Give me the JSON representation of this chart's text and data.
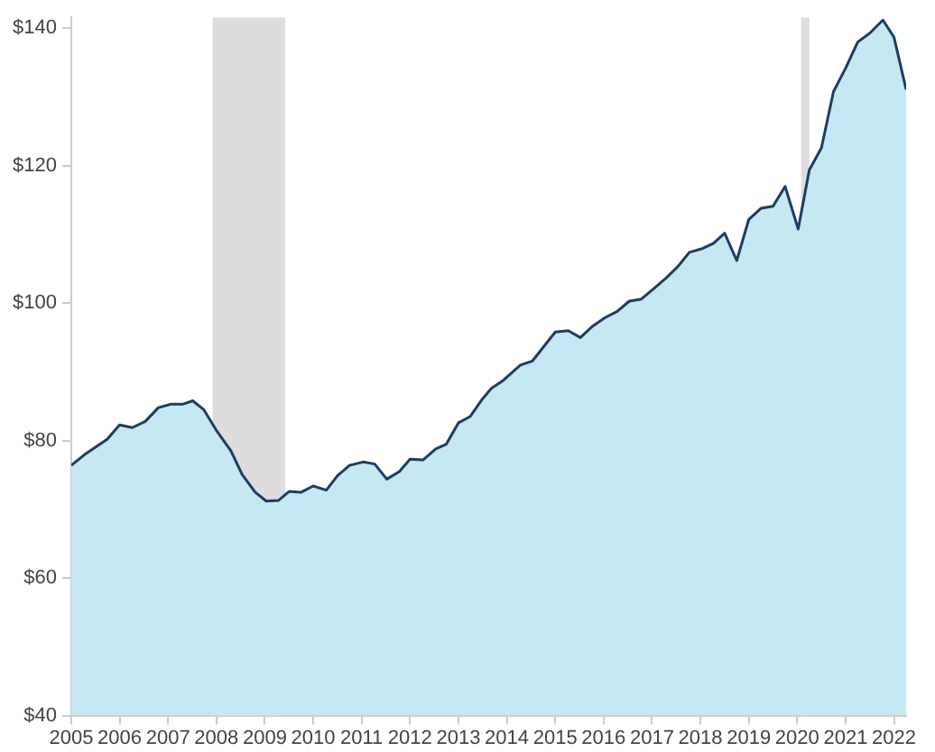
{
  "chart_data": {
    "type": "area",
    "x": [
      2005.0,
      2005.3,
      2005.74,
      2006.0,
      2006.26,
      2006.53,
      2006.8,
      2007.05,
      2007.3,
      2007.51,
      2007.74,
      2007.99,
      2008.3,
      2008.53,
      2008.8,
      2009.03,
      2009.28,
      2009.5,
      2009.75,
      2010.0,
      2010.27,
      2010.5,
      2010.75,
      2011.03,
      2011.27,
      2011.52,
      2011.78,
      2012.0,
      2012.27,
      2012.53,
      2012.75,
      2013.0,
      2013.24,
      2013.5,
      2013.68,
      2013.93,
      2014.28,
      2014.53,
      2015.0,
      2015.27,
      2015.52,
      2015.78,
      2016.03,
      2016.28,
      2016.53,
      2016.78,
      2017.03,
      2017.28,
      2017.53,
      2017.77,
      2018.02,
      2018.27,
      2018.5,
      2018.75,
      2019.0,
      2019.25,
      2019.5,
      2019.75,
      2020.02,
      2020.25,
      2020.5,
      2020.75,
      2021.0,
      2021.25,
      2021.5,
      2021.77,
      2022.0,
      2022.25
    ],
    "series": [
      {
        "color": "#c5e8f3",
        "values": [
          76.4,
          78.1,
          80.2,
          82.3,
          81.9,
          82.8,
          84.8,
          85.3,
          85.3,
          85.8,
          84.5,
          81.6,
          78.5,
          75.1,
          72.5,
          71.2,
          71.3,
          72.6,
          72.5,
          73.4,
          72.8,
          74.9,
          76.4,
          76.9,
          76.6,
          74.4,
          75.5,
          77.3,
          77.2,
          78.8,
          79.5,
          82.6,
          83.5,
          86.1,
          87.6,
          88.8,
          91.0,
          91.6,
          95.8,
          96.0,
          95.0,
          96.7,
          97.9,
          98.8,
          100.3,
          100.6,
          102.1,
          103.6,
          105.3,
          107.4,
          107.9,
          108.7,
          110.2,
          106.2,
          112.2,
          113.8,
          114.1,
          117.0,
          110.8,
          119.4,
          122.6,
          130.8,
          134.2,
          138.0,
          139.3,
          141.2,
          138.7,
          131.1
        ]
      }
    ],
    "xlim": [
      2005,
      2022.25
    ],
    "xticks": [
      2005,
      2006,
      2007,
      2008,
      2009,
      2010,
      2011,
      2012,
      2013,
      2014,
      2015,
      2016,
      2017,
      2018,
      2019,
      2020,
      2021,
      2022
    ],
    "ylim": [
      40,
      141.6
    ],
    "yticks": [
      {
        "value": 40,
        "label": "$40"
      },
      {
        "value": 60,
        "label": "$60"
      },
      {
        "value": 80,
        "label": "$80"
      },
      {
        "value": 100,
        "label": "$100"
      },
      {
        "value": 120,
        "label": "$120"
      },
      {
        "value": 140,
        "label": "$140"
      }
    ],
    "bands": [
      {
        "axis": "x",
        "from": 2007.92,
        "to": 2009.42,
        "color": "#dddddd"
      },
      {
        "axis": "x",
        "from": 2020.08,
        "to": 2020.25,
        "color": "#dddddd"
      }
    ],
    "grid": false,
    "legend": false
  }
}
